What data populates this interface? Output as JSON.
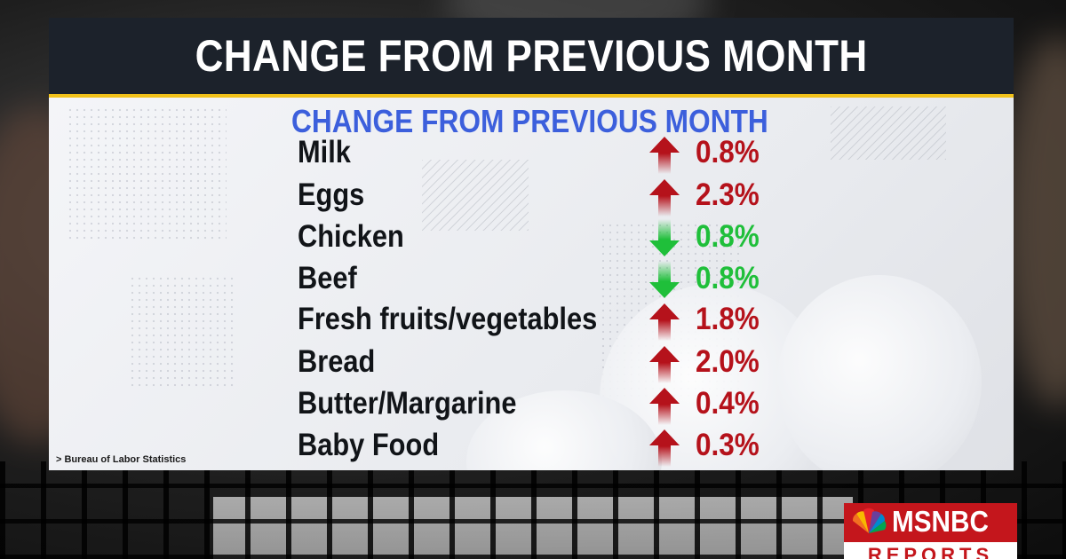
{
  "header": {
    "title": "CHANGE FROM PREVIOUS MONTH"
  },
  "panel": {
    "subtitle": "CHANGE FROM PREVIOUS MONTH",
    "source": "> Bureau of Labor Statistics",
    "items": [
      {
        "label": "Milk",
        "direction": "up",
        "value": "0.8%"
      },
      {
        "label": "Eggs",
        "direction": "up",
        "value": "2.3%"
      },
      {
        "label": "Chicken",
        "direction": "down",
        "value": "0.8%"
      },
      {
        "label": "Beef",
        "direction": "down",
        "value": "0.8%"
      },
      {
        "label": "Fresh fruits/vegetables",
        "direction": "up",
        "value": "1.8%"
      },
      {
        "label": "Bread",
        "direction": "up",
        "value": "2.0%"
      },
      {
        "label": "Butter/Margarine",
        "direction": "up",
        "value": "0.4%"
      },
      {
        "label": "Baby Food",
        "direction": "up",
        "value": "0.3%"
      }
    ]
  },
  "colors": {
    "up": "#b5121b",
    "down": "#1fbf3a",
    "subtitle": "#3c5fdc",
    "header_bg": "#1c222b",
    "accent_bar": "#f2c21a",
    "logo_bg": "#c4161c"
  },
  "logo": {
    "name": "MSNBC",
    "tagline": "REPORTS",
    "icon": "peacock-icon"
  }
}
